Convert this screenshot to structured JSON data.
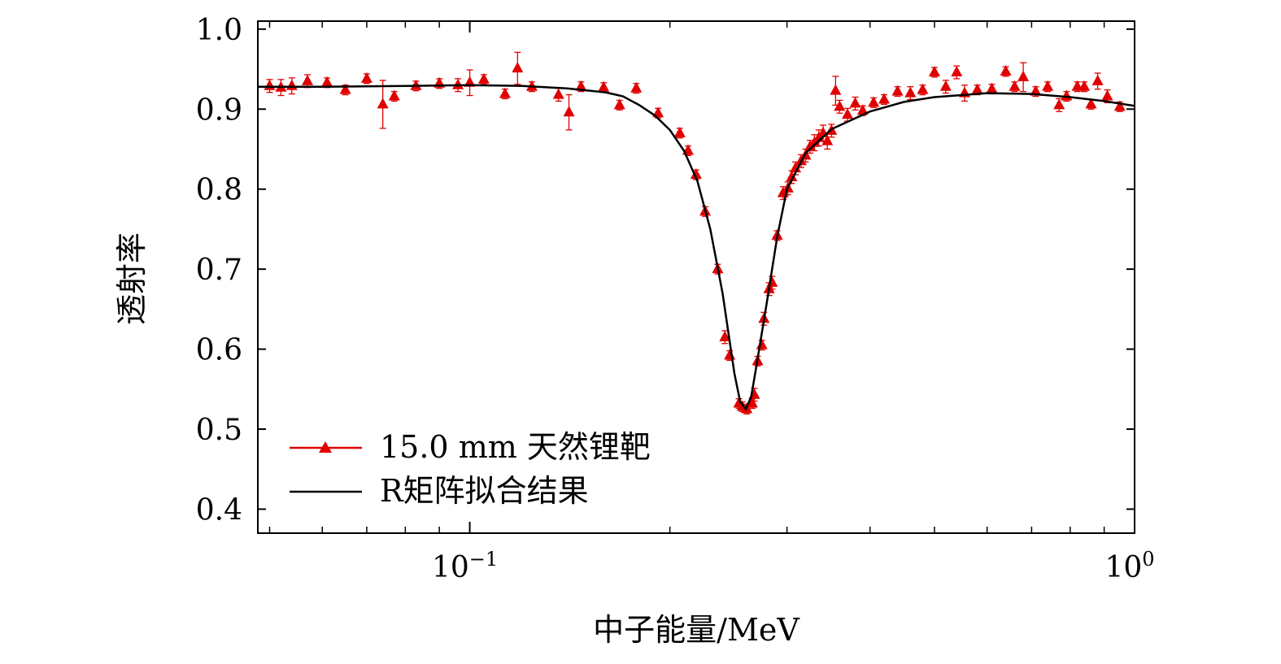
{
  "chart_data": {
    "type": "scatter",
    "title": "",
    "xlabel": "中子能量/MeV",
    "ylabel": "透射率",
    "xscale": "log",
    "xlim": [
      0.048,
      1.0
    ],
    "ylim": [
      0.37,
      1.01
    ],
    "yticks": [
      "0.4",
      "0.5",
      "0.6",
      "0.7",
      "0.8",
      "0.9",
      "1.0"
    ],
    "xticks": [
      {
        "base": "10",
        "exp": "−1",
        "value": 0.1
      },
      {
        "base": "10",
        "exp": "0",
        "value": 1.0
      }
    ],
    "legend_position": "bottom-left",
    "series": [
      {
        "name": "15.0 mm 天然锂靶",
        "style": "markers-with-errorbars",
        "color": "#e00000",
        "marker": "triangle",
        "points": [
          [
            0.05,
            0.929,
            0.008
          ],
          [
            0.052,
            0.927,
            0.01
          ],
          [
            0.054,
            0.929,
            0.01
          ],
          [
            0.057,
            0.935,
            0.008
          ],
          [
            0.061,
            0.933,
            0.006
          ],
          [
            0.065,
            0.924,
            0.006
          ],
          [
            0.07,
            0.938,
            0.006
          ],
          [
            0.074,
            0.906,
            0.03
          ],
          [
            0.077,
            0.916,
            0.006
          ],
          [
            0.083,
            0.929,
            0.006
          ],
          [
            0.09,
            0.932,
            0.006
          ],
          [
            0.096,
            0.93,
            0.008
          ],
          [
            0.1,
            0.933,
            0.016
          ],
          [
            0.105,
            0.937,
            0.006
          ],
          [
            0.113,
            0.919,
            0.006
          ],
          [
            0.118,
            0.951,
            0.02
          ],
          [
            0.124,
            0.928,
            0.006
          ],
          [
            0.136,
            0.918,
            0.008
          ],
          [
            0.141,
            0.896,
            0.022
          ],
          [
            0.147,
            0.928,
            0.006
          ],
          [
            0.159,
            0.927,
            0.006
          ],
          [
            0.168,
            0.905,
            0.006
          ],
          [
            0.178,
            0.926,
            0.006
          ],
          [
            0.192,
            0.895,
            0.006
          ],
          [
            0.207,
            0.87,
            0.006
          ],
          [
            0.213,
            0.848,
            0.006
          ],
          [
            0.219,
            0.818,
            0.006
          ],
          [
            0.226,
            0.772,
            0.006
          ],
          [
            0.236,
            0.7,
            0.006
          ],
          [
            0.242,
            0.615,
            0.008
          ],
          [
            0.246,
            0.592,
            0.006
          ],
          [
            0.254,
            0.532,
            0.006
          ],
          [
            0.257,
            0.528,
            0.006
          ],
          [
            0.261,
            0.525,
            0.006
          ],
          [
            0.266,
            0.532,
            0.006
          ],
          [
            0.268,
            0.543,
            0.008
          ],
          [
            0.271,
            0.585,
            0.006
          ],
          [
            0.275,
            0.605,
            0.006
          ],
          [
            0.277,
            0.638,
            0.008
          ],
          [
            0.282,
            0.675,
            0.008
          ],
          [
            0.285,
            0.683,
            0.008
          ],
          [
            0.29,
            0.742,
            0.006
          ],
          [
            0.296,
            0.795,
            0.008
          ],
          [
            0.301,
            0.801,
            0.008
          ],
          [
            0.305,
            0.815,
            0.008
          ],
          [
            0.309,
            0.826,
            0.008
          ],
          [
            0.315,
            0.835,
            0.008
          ],
          [
            0.32,
            0.842,
            0.008
          ],
          [
            0.325,
            0.853,
            0.008
          ],
          [
            0.33,
            0.858,
            0.01
          ],
          [
            0.335,
            0.864,
            0.01
          ],
          [
            0.34,
            0.87,
            0.01
          ],
          [
            0.345,
            0.86,
            0.01
          ],
          [
            0.35,
            0.873,
            0.008
          ],
          [
            0.355,
            0.923,
            0.018
          ],
          [
            0.36,
            0.903,
            0.008
          ],
          [
            0.37,
            0.893,
            0.008
          ],
          [
            0.38,
            0.907,
            0.008
          ],
          [
            0.39,
            0.898,
            0.006
          ],
          [
            0.405,
            0.908,
            0.006
          ],
          [
            0.42,
            0.912,
            0.006
          ],
          [
            0.44,
            0.922,
            0.006
          ],
          [
            0.46,
            0.92,
            0.008
          ],
          [
            0.48,
            0.924,
            0.006
          ],
          [
            0.5,
            0.946,
            0.006
          ],
          [
            0.52,
            0.928,
            0.008
          ],
          [
            0.54,
            0.946,
            0.008
          ],
          [
            0.555,
            0.92,
            0.01
          ],
          [
            0.58,
            0.924,
            0.006
          ],
          [
            0.61,
            0.925,
            0.006
          ],
          [
            0.64,
            0.947,
            0.006
          ],
          [
            0.66,
            0.928,
            0.006
          ],
          [
            0.68,
            0.94,
            0.018
          ],
          [
            0.71,
            0.922,
            0.006
          ],
          [
            0.74,
            0.928,
            0.006
          ],
          [
            0.77,
            0.905,
            0.008
          ],
          [
            0.79,
            0.916,
            0.006
          ],
          [
            0.82,
            0.928,
            0.006
          ],
          [
            0.84,
            0.928,
            0.006
          ],
          [
            0.86,
            0.906,
            0.006
          ],
          [
            0.88,
            0.935,
            0.01
          ],
          [
            0.91,
            0.916,
            0.008
          ],
          [
            0.95,
            0.903,
            0.006
          ]
        ]
      },
      {
        "name": "R矩阵拟合结果",
        "style": "line",
        "color": "#000000",
        "points": [
          [
            0.048,
            0.928
          ],
          [
            0.06,
            0.928
          ],
          [
            0.08,
            0.929
          ],
          [
            0.1,
            0.93
          ],
          [
            0.12,
            0.929
          ],
          [
            0.14,
            0.926
          ],
          [
            0.16,
            0.921
          ],
          [
            0.17,
            0.916
          ],
          [
            0.18,
            0.905
          ],
          [
            0.19,
            0.892
          ],
          [
            0.2,
            0.874
          ],
          [
            0.21,
            0.848
          ],
          [
            0.22,
            0.81
          ],
          [
            0.23,
            0.75
          ],
          [
            0.24,
            0.67
          ],
          [
            0.25,
            0.57
          ],
          [
            0.255,
            0.535
          ],
          [
            0.26,
            0.525
          ],
          [
            0.265,
            0.54
          ],
          [
            0.27,
            0.58
          ],
          [
            0.28,
            0.66
          ],
          [
            0.29,
            0.74
          ],
          [
            0.3,
            0.8
          ],
          [
            0.32,
            0.845
          ],
          [
            0.35,
            0.875
          ],
          [
            0.4,
            0.897
          ],
          [
            0.45,
            0.909
          ],
          [
            0.5,
            0.915
          ],
          [
            0.6,
            0.92
          ],
          [
            0.7,
            0.919
          ],
          [
            0.8,
            0.915
          ],
          [
            0.9,
            0.91
          ],
          [
            1.0,
            0.904
          ]
        ]
      }
    ]
  }
}
